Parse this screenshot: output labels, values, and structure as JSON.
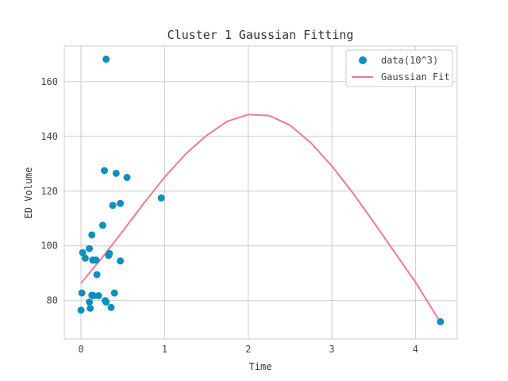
{
  "chart_data": {
    "type": "scatter",
    "title": "Cluster 1 Gaussian Fitting",
    "xlabel": "Time",
    "ylabel": "ED Volume",
    "xlim": [
      -0.2,
      4.5
    ],
    "ylim": [
      66,
      173
    ],
    "x_ticks": [
      0,
      1,
      2,
      3,
      4
    ],
    "y_ticks": [
      80,
      100,
      120,
      140,
      160
    ],
    "grid": true,
    "legend_position": "top-right",
    "series": [
      {
        "name": "data(10^3)",
        "kind": "scatter",
        "color": "#0e8fbf",
        "points": [
          [
            0.3,
            168.2
          ],
          [
            0.28,
            127.5
          ],
          [
            0.42,
            126.5
          ],
          [
            0.55,
            125.0
          ],
          [
            0.96,
            117.5
          ],
          [
            0.47,
            115.5
          ],
          [
            0.38,
            114.8
          ],
          [
            0.26,
            107.5
          ],
          [
            0.13,
            104.0
          ],
          [
            0.1,
            99.0
          ],
          [
            0.02,
            97.5
          ],
          [
            0.05,
            95.5
          ],
          [
            0.14,
            94.8
          ],
          [
            0.18,
            94.8
          ],
          [
            0.34,
            97.2
          ],
          [
            0.33,
            96.5
          ],
          [
            0.47,
            94.5
          ],
          [
            0.19,
            89.5
          ],
          [
            0.01,
            82.8
          ],
          [
            0.13,
            82.0
          ],
          [
            0.15,
            81.8
          ],
          [
            0.21,
            81.8
          ],
          [
            0.4,
            82.8
          ],
          [
            0.29,
            80.0
          ],
          [
            0.3,
            79.5
          ],
          [
            0.1,
            79.5
          ],
          [
            0.36,
            77.5
          ],
          [
            0.11,
            77.2
          ],
          [
            0.0,
            76.5
          ],
          [
            4.3,
            72.3
          ]
        ]
      },
      {
        "name": "Gaussian Fit",
        "kind": "line",
        "color": "#f07899",
        "x": [
          0.0,
          0.25,
          0.5,
          0.75,
          1.0,
          1.25,
          1.5,
          1.75,
          2.0,
          2.25,
          2.5,
          2.75,
          3.0,
          3.25,
          3.5,
          3.75,
          4.0,
          4.3
        ],
        "values": [
          86.4,
          95.6,
          105.4,
          115.5,
          125.1,
          133.5,
          140.3,
          145.5,
          148.0,
          147.6,
          144.1,
          137.6,
          129.2,
          119.4,
          108.7,
          97.7,
          86.8,
          72.0
        ]
      }
    ],
    "legend": [
      {
        "label": "data(10^3)",
        "marker": "dot"
      },
      {
        "label": "Gaussian Fit",
        "marker": "line"
      }
    ]
  }
}
